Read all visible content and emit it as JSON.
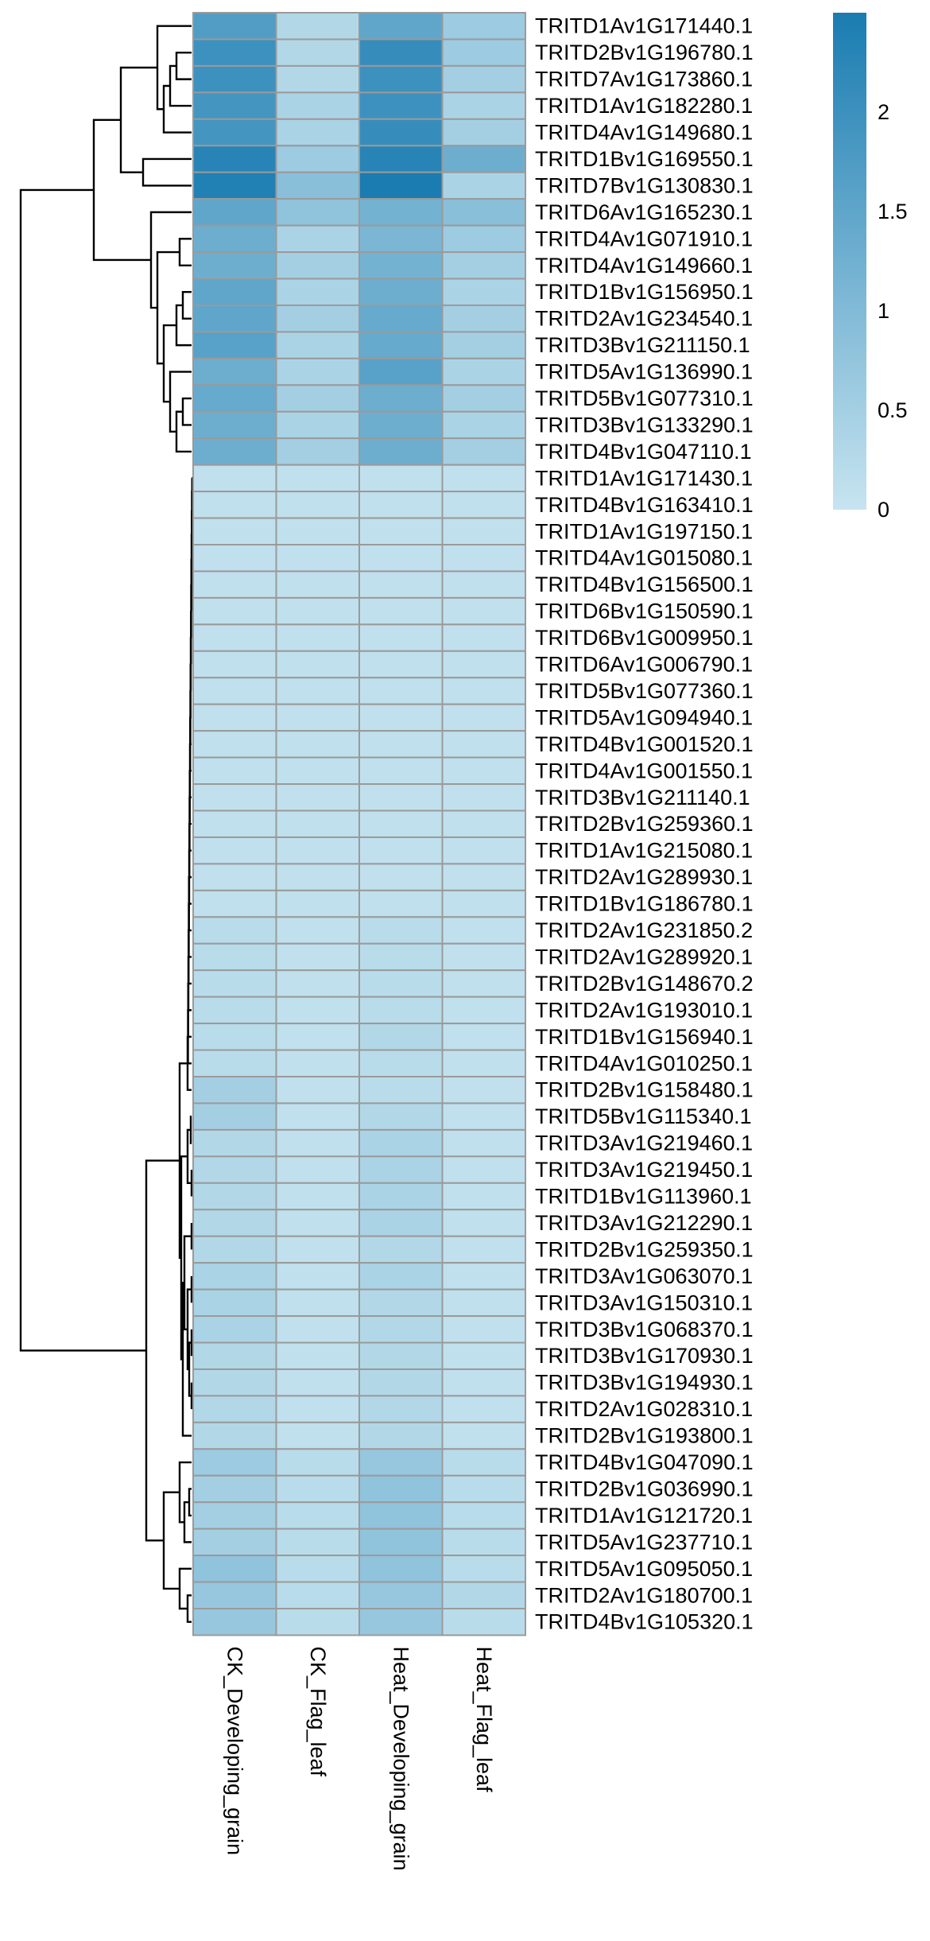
{
  "chart_data": {
    "type": "heatmap",
    "columns": [
      "CK_Developing_grain",
      "CK_Flag_leaf",
      "Heat_Developing_grain",
      "Heat_Flag_leaf"
    ],
    "rows": [
      {
        "label": "TRITD1Av1G171440.1",
        "values": [
          1.7,
          0.3,
          1.5,
          0.6
        ]
      },
      {
        "label": "TRITD2Bv1G196780.1",
        "values": [
          2.0,
          0.3,
          2.1,
          0.6
        ]
      },
      {
        "label": "TRITD7Av1G173860.1",
        "values": [
          2.0,
          0.3,
          2.0,
          0.5
        ]
      },
      {
        "label": "TRITD1Av1G182280.1",
        "values": [
          1.9,
          0.4,
          2.0,
          0.4
        ]
      },
      {
        "label": "TRITD4Av1G149680.1",
        "values": [
          1.9,
          0.4,
          2.1,
          0.5
        ]
      },
      {
        "label": "TRITD1Bv1G169550.1",
        "values": [
          2.3,
          0.6,
          2.3,
          1.3
        ]
      },
      {
        "label": "TRITD7Bv1G130830.1",
        "values": [
          2.4,
          0.9,
          2.5,
          0.4
        ]
      },
      {
        "label": "TRITD6Av1G165230.1",
        "values": [
          1.5,
          0.8,
          1.2,
          0.9
        ]
      },
      {
        "label": "TRITD4Av1G071910.1",
        "values": [
          1.3,
          0.4,
          1.1,
          0.6
        ]
      },
      {
        "label": "TRITD4Av1G149660.1",
        "values": [
          1.3,
          0.5,
          1.2,
          0.5
        ]
      },
      {
        "label": "TRITD1Bv1G156950.1",
        "values": [
          1.5,
          0.4,
          1.3,
          0.4
        ]
      },
      {
        "label": "TRITD2Av1G234540.1",
        "values": [
          1.5,
          0.5,
          1.4,
          0.5
        ]
      },
      {
        "label": "TRITD3Bv1G211150.1",
        "values": [
          1.6,
          0.4,
          1.4,
          0.5
        ]
      },
      {
        "label": "TRITD5Av1G136990.1",
        "values": [
          1.3,
          0.4,
          1.6,
          0.4
        ]
      },
      {
        "label": "TRITD5Bv1G077310.1",
        "values": [
          1.4,
          0.5,
          1.3,
          0.5
        ]
      },
      {
        "label": "TRITD3Bv1G133290.1",
        "values": [
          1.3,
          0.4,
          1.3,
          0.4
        ]
      },
      {
        "label": "TRITD4Bv1G047110.1",
        "values": [
          1.3,
          0.5,
          1.3,
          0.5
        ]
      },
      {
        "label": "TRITD1Av1G171430.1",
        "values": [
          0.1,
          0.1,
          0.1,
          0.1
        ]
      },
      {
        "label": "TRITD4Bv1G163410.1",
        "values": [
          0.1,
          0.1,
          0.1,
          0.1
        ]
      },
      {
        "label": "TRITD1Av1G197150.1",
        "values": [
          0.1,
          0.1,
          0.1,
          0.1
        ]
      },
      {
        "label": "TRITD4Av1G015080.1",
        "values": [
          0.1,
          0.1,
          0.1,
          0.1
        ]
      },
      {
        "label": "TRITD4Bv1G156500.1",
        "values": [
          0.1,
          0.1,
          0.1,
          0.1
        ]
      },
      {
        "label": "TRITD6Bv1G150590.1",
        "values": [
          0.1,
          0.1,
          0.1,
          0.1
        ]
      },
      {
        "label": "TRITD6Bv1G009950.1",
        "values": [
          0.1,
          0.1,
          0.1,
          0.1
        ]
      },
      {
        "label": "TRITD6Av1G006790.1",
        "values": [
          0.1,
          0.1,
          0.1,
          0.1
        ]
      },
      {
        "label": "TRITD5Bv1G077360.1",
        "values": [
          0.1,
          0.1,
          0.1,
          0.1
        ]
      },
      {
        "label": "TRITD5Av1G094940.1",
        "values": [
          0.1,
          0.1,
          0.1,
          0.1
        ]
      },
      {
        "label": "TRITD4Bv1G001520.1",
        "values": [
          0.1,
          0.1,
          0.1,
          0.1
        ]
      },
      {
        "label": "TRITD4Av1G001550.1",
        "values": [
          0.1,
          0.1,
          0.1,
          0.1
        ]
      },
      {
        "label": "TRITD3Bv1G211140.1",
        "values": [
          0.1,
          0.1,
          0.1,
          0.1
        ]
      },
      {
        "label": "TRITD2Bv1G259360.1",
        "values": [
          0.1,
          0.1,
          0.1,
          0.1
        ]
      },
      {
        "label": "TRITD1Av1G215080.1",
        "values": [
          0.1,
          0.1,
          0.1,
          0.1
        ]
      },
      {
        "label": "TRITD2Av1G289930.1",
        "values": [
          0.1,
          0.1,
          0.1,
          0.1
        ]
      },
      {
        "label": "TRITD1Bv1G186780.1",
        "values": [
          0.1,
          0.1,
          0.1,
          0.1
        ]
      },
      {
        "label": "TRITD2Av1G231850.2",
        "values": [
          0.2,
          0.1,
          0.2,
          0.1
        ]
      },
      {
        "label": "TRITD2Av1G289920.1",
        "values": [
          0.2,
          0.1,
          0.2,
          0.1
        ]
      },
      {
        "label": "TRITD2Bv1G148670.2",
        "values": [
          0.2,
          0.1,
          0.2,
          0.1
        ]
      },
      {
        "label": "TRITD2Av1G193010.1",
        "values": [
          0.2,
          0.1,
          0.2,
          0.1
        ]
      },
      {
        "label": "TRITD1Bv1G156940.1",
        "values": [
          0.2,
          0.1,
          0.3,
          0.1
        ]
      },
      {
        "label": "TRITD4Av1G010250.1",
        "values": [
          0.2,
          0.1,
          0.2,
          0.1
        ]
      },
      {
        "label": "TRITD2Bv1G158480.1",
        "values": [
          0.5,
          0.1,
          0.2,
          0.1
        ]
      },
      {
        "label": "TRITD5Bv1G115340.1",
        "values": [
          0.5,
          0.1,
          0.3,
          0.1
        ]
      },
      {
        "label": "TRITD3Av1G219460.1",
        "values": [
          0.3,
          0.1,
          0.4,
          0.1
        ]
      },
      {
        "label": "TRITD3Av1G219450.1",
        "values": [
          0.3,
          0.1,
          0.4,
          0.1
        ]
      },
      {
        "label": "TRITD1Bv1G113960.1",
        "values": [
          0.3,
          0.1,
          0.4,
          0.1
        ]
      },
      {
        "label": "TRITD3Av1G212290.1",
        "values": [
          0.3,
          0.1,
          0.4,
          0.1
        ]
      },
      {
        "label": "TRITD2Bv1G259350.1",
        "values": [
          0.3,
          0.1,
          0.3,
          0.1
        ]
      },
      {
        "label": "TRITD3Av1G063070.1",
        "values": [
          0.4,
          0.1,
          0.4,
          0.1
        ]
      },
      {
        "label": "TRITD3Av1G150310.1",
        "values": [
          0.4,
          0.1,
          0.3,
          0.1
        ]
      },
      {
        "label": "TRITD3Bv1G068370.1",
        "values": [
          0.4,
          0.1,
          0.3,
          0.1
        ]
      },
      {
        "label": "TRITD3Bv1G170930.1",
        "values": [
          0.3,
          0.1,
          0.3,
          0.1
        ]
      },
      {
        "label": "TRITD3Bv1G194930.1",
        "values": [
          0.3,
          0.1,
          0.3,
          0.1
        ]
      },
      {
        "label": "TRITD2Av1G028310.1",
        "values": [
          0.3,
          0.1,
          0.3,
          0.1
        ]
      },
      {
        "label": "TRITD2Bv1G193800.1",
        "values": [
          0.3,
          0.1,
          0.3,
          0.1
        ]
      },
      {
        "label": "TRITD4Bv1G047090.1",
        "values": [
          0.6,
          0.2,
          0.7,
          0.2
        ]
      },
      {
        "label": "TRITD2Bv1G036990.1",
        "values": [
          0.5,
          0.2,
          0.8,
          0.2
        ]
      },
      {
        "label": "TRITD1Av1G121720.1",
        "values": [
          0.5,
          0.2,
          0.8,
          0.2
        ]
      },
      {
        "label": "TRITD5Av1G237710.1",
        "values": [
          0.5,
          0.2,
          0.8,
          0.2
        ]
      },
      {
        "label": "TRITD5Av1G095050.1",
        "values": [
          0.8,
          0.2,
          0.8,
          0.2
        ]
      },
      {
        "label": "TRITD2Av1G180700.1",
        "values": [
          0.7,
          0.2,
          0.7,
          0.3
        ]
      },
      {
        "label": "TRITD4Bv1G105320.1",
        "values": [
          0.7,
          0.2,
          0.7,
          0.2
        ]
      }
    ],
    "color_scale": {
      "min": 0,
      "max": 2.5,
      "low_color": "#c7e4f0",
      "high_color": "#1a7cb1",
      "ticks": [
        "0",
        "0.5",
        "1",
        "1.5",
        "2"
      ],
      "tick_values": [
        0,
        0.5,
        1,
        1.5,
        2
      ]
    },
    "cell_border_color": "#9a9a9a",
    "dendrogram": "left"
  }
}
